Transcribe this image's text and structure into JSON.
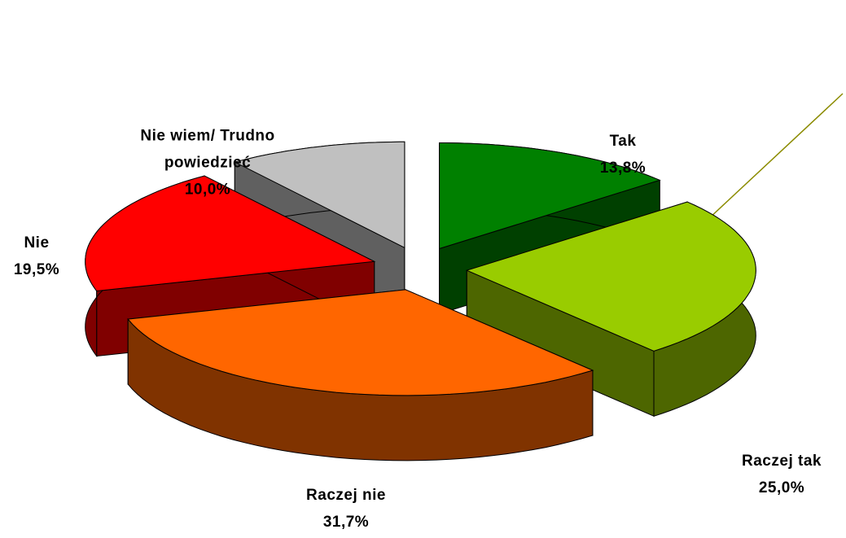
{
  "chart_data": {
    "type": "pie3d",
    "categories": [
      "Tak",
      "Raczej tak",
      "Raczej nie",
      "Nie",
      "Nie wiem/ Trudno powiedzieć"
    ],
    "values": [
      13.8,
      25.0,
      31.7,
      19.5,
      10.0
    ],
    "value_labels": [
      "13,8%",
      "25,0%",
      "31,7%",
      "19,5%",
      "10,0%"
    ],
    "colors": [
      "#008000",
      "#99cc00",
      "#ff6600",
      "#ff0000",
      "#c0c0c0"
    ]
  }
}
